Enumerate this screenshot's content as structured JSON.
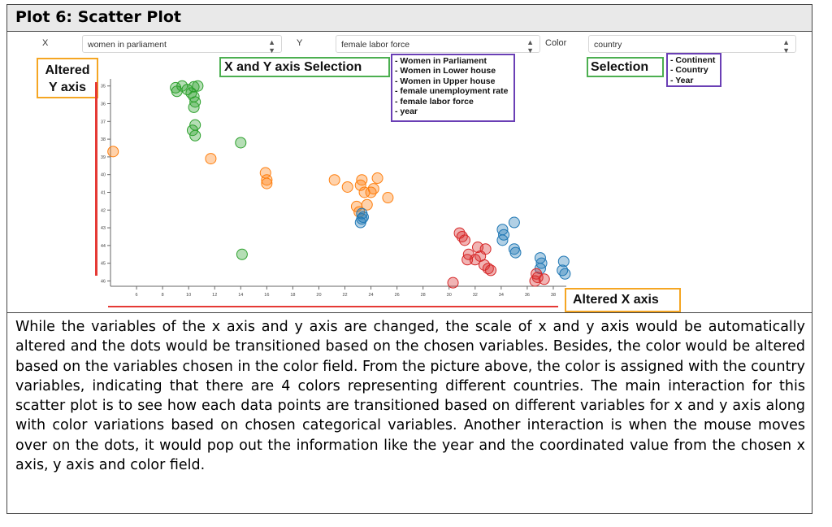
{
  "title": "Plot 6: Scatter Plot",
  "controls": {
    "x_label": "X",
    "x_value": "women in parliament",
    "y_label": "Y",
    "y_value": "female labor force",
    "color_label": "Color",
    "color_value": "country"
  },
  "annotations": {
    "altered_y_line1": "Altered",
    "altered_y_line2": "Y axis",
    "xy_selection": "X and Y axis Selection",
    "xy_options": [
      "- Women in Parliament",
      "- Women in Lower house",
      "- Women in Upper house",
      "- female unemployment rate",
      "- female labor force",
      "- year"
    ],
    "color_selection": "Selection",
    "color_options": [
      "- Continent",
      "- Country",
      "- Year"
    ],
    "altered_x": "Altered X axis"
  },
  "description": "While the variables of the x axis and y axis are changed, the scale of x and y axis would be automatically altered and the dots would be transitioned based on the chosen variables. Besides, the color would be altered based on the variables chosen in the color field. From the picture above, the color is assigned with the country variables, indicating that there are 4 colors representing different countries. The main interaction for this scatter plot is to see how each data points are transitioned based on different variables for x and y axis along with color variations based on chosen categorical variables. Another interaction is when the mouse moves over on the dots, it would pop out the information like the year and the coordinated value from the chosen x axis, y axis and color field.",
  "chart_data": {
    "type": "scatter",
    "xlim": [
      4,
      39
    ],
    "ylim": [
      34.6,
      46.3
    ],
    "xticks": [
      6,
      8,
      10,
      12,
      14,
      16,
      18,
      20,
      22,
      24,
      26,
      28,
      30,
      32,
      34,
      36,
      38
    ],
    "yticks": [
      35,
      36,
      37,
      38,
      39,
      40,
      41,
      42,
      43,
      44,
      45,
      46
    ],
    "series": [
      {
        "color": "#2ca02c",
        "points": [
          [
            9.0,
            35.1
          ],
          [
            9.1,
            35.3
          ],
          [
            9.5,
            35.0
          ],
          [
            9.9,
            35.2
          ],
          [
            10.4,
            35.05
          ],
          [
            10.7,
            35.0
          ],
          [
            10.2,
            35.4
          ],
          [
            10.4,
            35.6
          ],
          [
            10.5,
            35.9
          ],
          [
            10.4,
            36.2
          ],
          [
            10.5,
            37.2
          ],
          [
            10.3,
            37.5
          ],
          [
            10.5,
            37.8
          ],
          [
            14.0,
            38.2
          ],
          [
            14.1,
            44.5
          ]
        ]
      },
      {
        "color": "#ff7f0e",
        "points": [
          [
            4.2,
            38.7
          ],
          [
            11.7,
            39.1
          ],
          [
            15.9,
            39.9
          ],
          [
            16.0,
            40.3
          ],
          [
            16.0,
            40.5
          ],
          [
            21.2,
            40.3
          ],
          [
            22.2,
            40.7
          ],
          [
            23.2,
            40.6
          ],
          [
            23.3,
            40.3
          ],
          [
            24.2,
            40.8
          ],
          [
            24.0,
            41.0
          ],
          [
            24.5,
            40.2
          ],
          [
            23.5,
            41.0
          ],
          [
            25.3,
            41.3
          ],
          [
            23.7,
            41.7
          ],
          [
            22.9,
            41.8
          ],
          [
            23.1,
            42.1
          ]
        ]
      },
      {
        "color": "#1f77b4",
        "points": [
          [
            23.3,
            42.2
          ],
          [
            23.4,
            42.4
          ],
          [
            23.3,
            42.5
          ],
          [
            23.2,
            42.7
          ],
          [
            35.0,
            42.7
          ],
          [
            34.1,
            43.1
          ],
          [
            34.2,
            43.4
          ],
          [
            34.1,
            43.7
          ],
          [
            35.0,
            44.2
          ],
          [
            35.1,
            44.4
          ],
          [
            37.0,
            44.7
          ],
          [
            37.1,
            45.0
          ],
          [
            37.0,
            45.3
          ],
          [
            38.8,
            44.9
          ],
          [
            38.7,
            45.4
          ],
          [
            38.9,
            45.6
          ]
        ]
      },
      {
        "color": "#d62728",
        "points": [
          [
            30.8,
            43.3
          ],
          [
            31.0,
            43.5
          ],
          [
            31.2,
            43.7
          ],
          [
            32.2,
            44.1
          ],
          [
            32.8,
            44.2
          ],
          [
            31.5,
            44.5
          ],
          [
            32.4,
            44.6
          ],
          [
            32.0,
            44.8
          ],
          [
            31.4,
            44.8
          ],
          [
            32.7,
            45.1
          ],
          [
            33.0,
            45.3
          ],
          [
            33.2,
            45.4
          ],
          [
            36.7,
            45.6
          ],
          [
            36.8,
            45.8
          ],
          [
            36.6,
            46.0
          ],
          [
            37.3,
            45.9
          ],
          [
            30.3,
            46.1
          ]
        ]
      }
    ]
  }
}
